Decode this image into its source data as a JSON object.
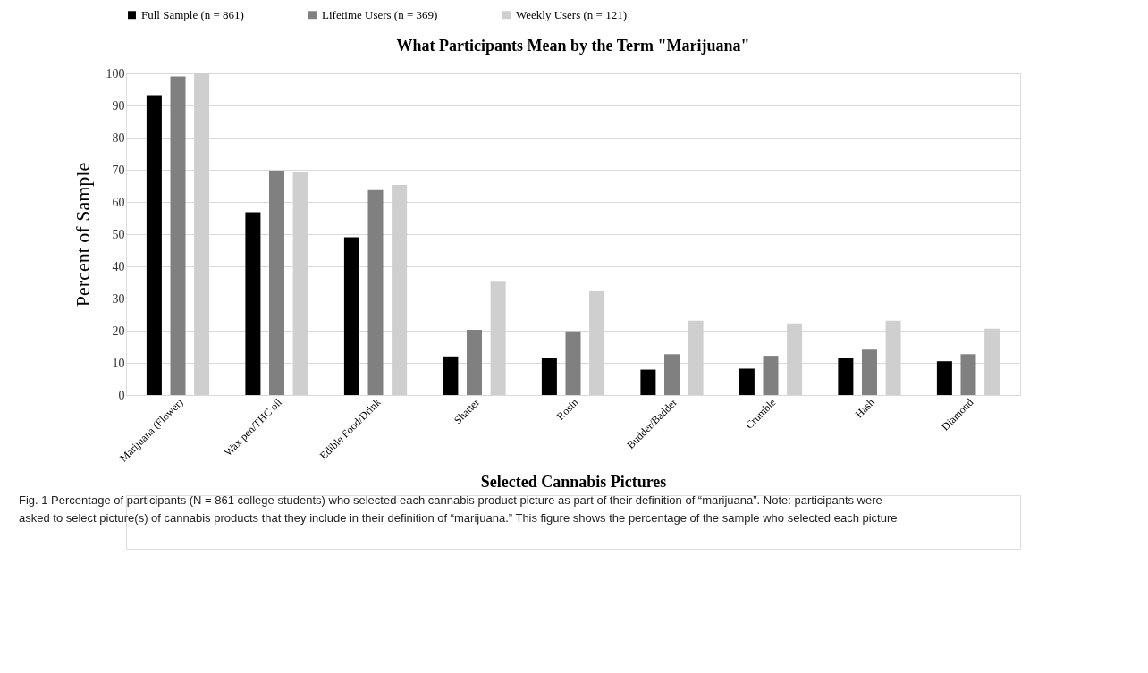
{
  "chart_data": {
    "type": "bar",
    "title": "What Participants Mean by the Term \"Marijuana\"",
    "xlabel": "Selected Cannabis Pictures",
    "ylabel": "Percent of Sample",
    "categories": [
      "Marijuana (Flower)",
      "Wax pen/THC oil",
      "Edible Food/Drink",
      "Shatter",
      "Rosin",
      "Budder/Badder",
      "Crumble",
      "Hash",
      "Diamond"
    ],
    "series": [
      {
        "name": "Full Sample (n = 861)",
        "color": "#000000",
        "values": [
          93.2,
          56.8,
          49,
          12,
          11.6,
          7.9,
          8.2,
          11.6,
          10.5
        ]
      },
      {
        "name": "Lifetime Users (n = 369)",
        "color": "#808080",
        "values": [
          99,
          69.7,
          63.7,
          20.3,
          19.8,
          12.7,
          12.2,
          14.1,
          12.7
        ]
      },
      {
        "name": "Weekly Users (n = 121)",
        "color": "#d0cfd0",
        "values": [
          100,
          69.4,
          65.3,
          35.5,
          32.2,
          23.1,
          22.3,
          23.1,
          20.6
        ]
      }
    ],
    "ylim": [
      0,
      100
    ],
    "yticks": [
      0,
      10,
      20,
      30,
      40,
      50,
      60,
      70,
      80,
      90,
      100
    ],
    "grid": "y",
    "legend": "top",
    "annotations": [
      "Fig. 1  Percentage of participants (N = 861 college students) who selected each cannabis product picture as part of their definition of “marijuana”. Note: participants were asked to select picture(s) of cannabis products that they include in their definition of “marijuana.” This figure shows the percentage of the sample who selected each picture"
    ]
  }
}
